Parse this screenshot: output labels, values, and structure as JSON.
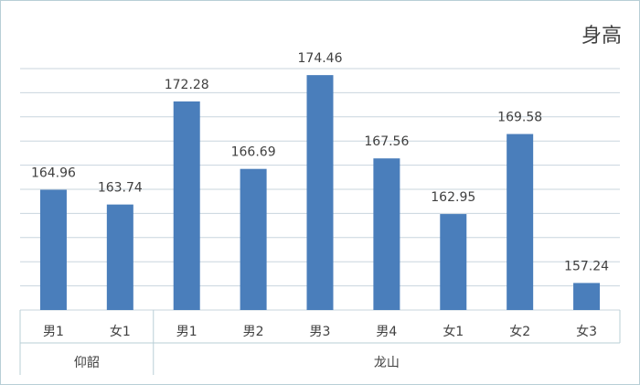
{
  "chart_data": {
    "type": "bar",
    "title": "身高",
    "groups": [
      {
        "label": "仰韶",
        "categories": [
          "男1",
          "女1"
        ],
        "values": [
          164.96,
          163.74
        ]
      },
      {
        "label": "龙山",
        "categories": [
          "男1",
          "男2",
          "男3",
          "男4",
          "女1",
          "女2",
          "女3"
        ],
        "values": [
          172.28,
          166.69,
          174.46,
          167.56,
          162.95,
          169.58,
          157.24
        ]
      }
    ],
    "color": "#4a7ebb",
    "ylim": [
      155,
      175
    ],
    "yticks": [
      155,
      157,
      159,
      161,
      163,
      165,
      167,
      169,
      171,
      173,
      175
    ],
    "grid": true
  }
}
